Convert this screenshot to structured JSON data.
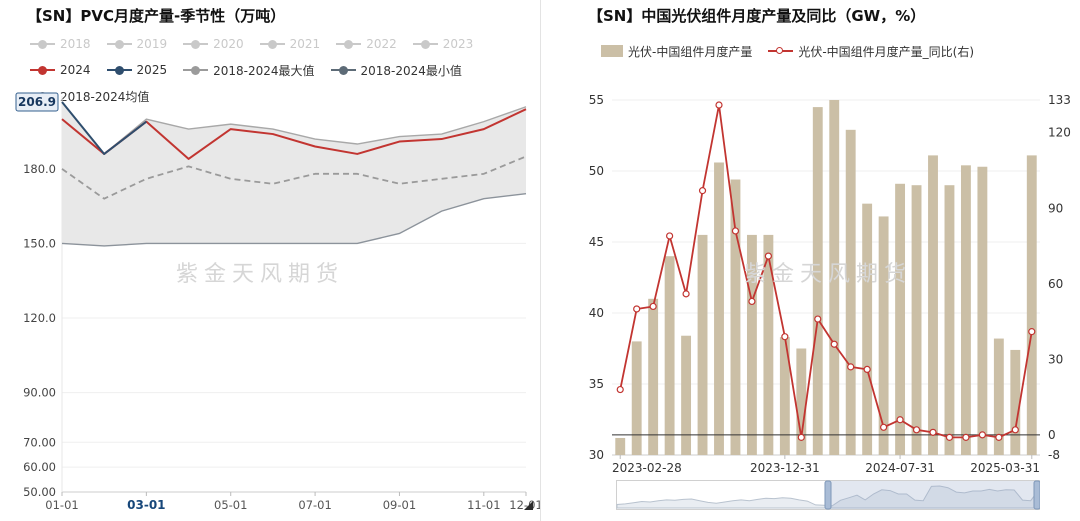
{
  "page": {
    "watermark": "紫金天风期货",
    "background": "#ffffff"
  },
  "left_chart": {
    "title": "【SN】PVC月度产量-季节性（万吨）",
    "legend_rows": [
      [
        {
          "label": "2018",
          "color": "#c9c9c9",
          "type": "line",
          "disabled": true
        },
        {
          "label": "2019",
          "color": "#c9c9c9",
          "type": "line",
          "disabled": true
        },
        {
          "label": "2020",
          "color": "#c9c9c9",
          "type": "line",
          "disabled": true
        },
        {
          "label": "2021",
          "color": "#c9c9c9",
          "type": "line",
          "disabled": true
        },
        {
          "label": "2022",
          "color": "#c9c9c9",
          "type": "line",
          "disabled": true
        },
        {
          "label": "2023",
          "color": "#c9c9c9",
          "type": "line",
          "disabled": true
        }
      ],
      [
        {
          "label": "2024",
          "color": "#c23531",
          "type": "line",
          "disabled": false
        },
        {
          "label": "2025",
          "color": "#2f4e6e",
          "type": "line",
          "disabled": false
        },
        {
          "label": "2018-2024最大值",
          "color": "#9b9b9b",
          "type": "line",
          "disabled": false
        },
        {
          "label": "2018-2024最小值",
          "color": "#5d6b77",
          "type": "line",
          "disabled": false
        }
      ],
      [
        {
          "label": "2018-2024均值",
          "color": "#8a8a8a",
          "type": "line",
          "disabled": false
        }
      ]
    ],
    "highlight": {
      "y_label": "206.9",
      "x_label": "03-01"
    }
  },
  "right_chart": {
    "title": "【SN】中国光伏组件月度产量及同比（GW，%）",
    "legend": [
      {
        "label": "光伏-中国组件月度产量",
        "color": "#cbbfa6",
        "type": "rect",
        "disabled": false
      },
      {
        "label": "光伏-中国组件月度产量_同比(右)",
        "color": "#c23531",
        "type": "hollow-line",
        "disabled": false
      }
    ],
    "datazoom": {
      "start_pct": 50,
      "end_pct": 100
    }
  },
  "chart_data": [
    {
      "type": "line",
      "title": "【SN】PVC月度产量-季节性（万吨）",
      "x": [
        "01-01",
        "02-01",
        "03-01",
        "04-01",
        "05-01",
        "06-01",
        "07-01",
        "08-01",
        "09-01",
        "10-01",
        "11-01",
        "12-01"
      ],
      "x_tick_labels": [
        "01-01",
        "03-01",
        "05-01",
        "07-01",
        "09-01",
        "11-01",
        "12-01"
      ],
      "ylim": [
        50,
        206.9
      ],
      "y_ticks": [
        50,
        60,
        70,
        90,
        120,
        150,
        180,
        206.9
      ],
      "y_tick_labels": [
        "50.00",
        "60.00",
        "70.00",
        "90.00",
        "120.0",
        "150.0",
        "180.0",
        "206.9"
      ],
      "band": {
        "name_max": "2018-2024最大值",
        "name_min": "2018-2024最小值",
        "fill": "#e8e8e8",
        "max": [
          206.9,
          186,
          200,
          196,
          198,
          196,
          192,
          190,
          193,
          194,
          199,
          205
        ],
        "min": [
          150,
          149,
          150,
          150,
          150,
          150,
          150,
          150,
          154,
          163,
          168,
          170
        ]
      },
      "series": [
        {
          "name": "2018-2024均值",
          "color": "#9a9a9a",
          "dash": "6,4",
          "width": 1.8,
          "values": [
            180,
            168,
            176,
            181,
            176,
            174,
            178,
            178,
            174,
            176,
            178,
            185
          ]
        },
        {
          "name": "2024",
          "color": "#c23531",
          "width": 2,
          "values": [
            200,
            186,
            199,
            184,
            196,
            194,
            189,
            186,
            191,
            192,
            196,
            204
          ]
        },
        {
          "name": "2025",
          "color": "#2f4e6e",
          "width": 2,
          "values": [
            206.9,
            186,
            199
          ]
        }
      ],
      "xlabel": "",
      "ylabel": ""
    },
    {
      "type": "bar",
      "title": "【SN】中国光伏组件月度产量及同比（GW，%）",
      "x": [
        "2023-02-28",
        "2023-03-31",
        "2023-04-30",
        "2023-05-31",
        "2023-06-30",
        "2023-07-31",
        "2023-08-31",
        "2023-09-30",
        "2023-10-31",
        "2023-11-30",
        "2023-12-31",
        "2024-01-31",
        "2024-02-29",
        "2024-03-31",
        "2024-04-30",
        "2024-05-31",
        "2024-06-30",
        "2024-07-31",
        "2024-08-31",
        "2024-09-30",
        "2024-10-31",
        "2024-11-30",
        "2024-12-31",
        "2025-01-31",
        "2025-02-28",
        "2025-03-31"
      ],
      "x_tick_labels": [
        "2023-02-28",
        "2023-12-31",
        "2024-07-31",
        "2025-03-31"
      ],
      "left_ylim": [
        30,
        55
      ],
      "left_ticks": [
        30,
        35,
        40,
        45,
        50,
        55
      ],
      "right_ylim": [
        -8,
        133
      ],
      "right_ticks": [
        -8,
        0,
        30,
        60,
        90,
        120,
        133
      ],
      "bars": {
        "name": "光伏-中国组件月度产量",
        "color": "#cbbfa6",
        "values": [
          31.2,
          38.0,
          41.0,
          44.0,
          38.4,
          45.5,
          50.6,
          49.4,
          45.5,
          45.5,
          38.3,
          37.5,
          54.5,
          55.0,
          52.9,
          47.7,
          46.8,
          49.1,
          49.0,
          51.1,
          49.0,
          50.4,
          50.3,
          38.2,
          37.4,
          51.1
        ]
      },
      "line": {
        "name": "光伏-中国组件月度产量_同比(右)",
        "color": "#c23531",
        "values": [
          18,
          50,
          51,
          79,
          56,
          97,
          131,
          81,
          53,
          71,
          39,
          -1,
          46,
          36,
          27,
          26,
          3,
          6,
          2,
          1,
          -1,
          -1,
          0,
          -1,
          2,
          41
        ]
      },
      "slider_shadow": [
        0.12,
        0.15,
        0.2,
        0.26,
        0.24,
        0.3,
        0.34,
        0.32,
        0.36,
        0.38,
        0.3,
        0.22,
        0.18,
        0.24,
        0.3,
        0.34,
        0.3,
        0.36,
        0.42,
        0.4,
        0.44,
        0.42,
        0.34,
        0.28,
        0.1,
        0.08,
        0.05,
        0.32,
        0.44,
        0.56,
        0.34,
        0.62,
        0.82,
        0.78,
        0.62,
        0.62,
        0.33,
        0.3,
        0.98,
        1.0,
        0.92,
        0.71,
        0.67,
        0.76,
        0.76,
        0.84,
        0.76,
        0.82,
        0.81,
        0.33,
        0.3,
        0.84
      ]
    }
  ]
}
